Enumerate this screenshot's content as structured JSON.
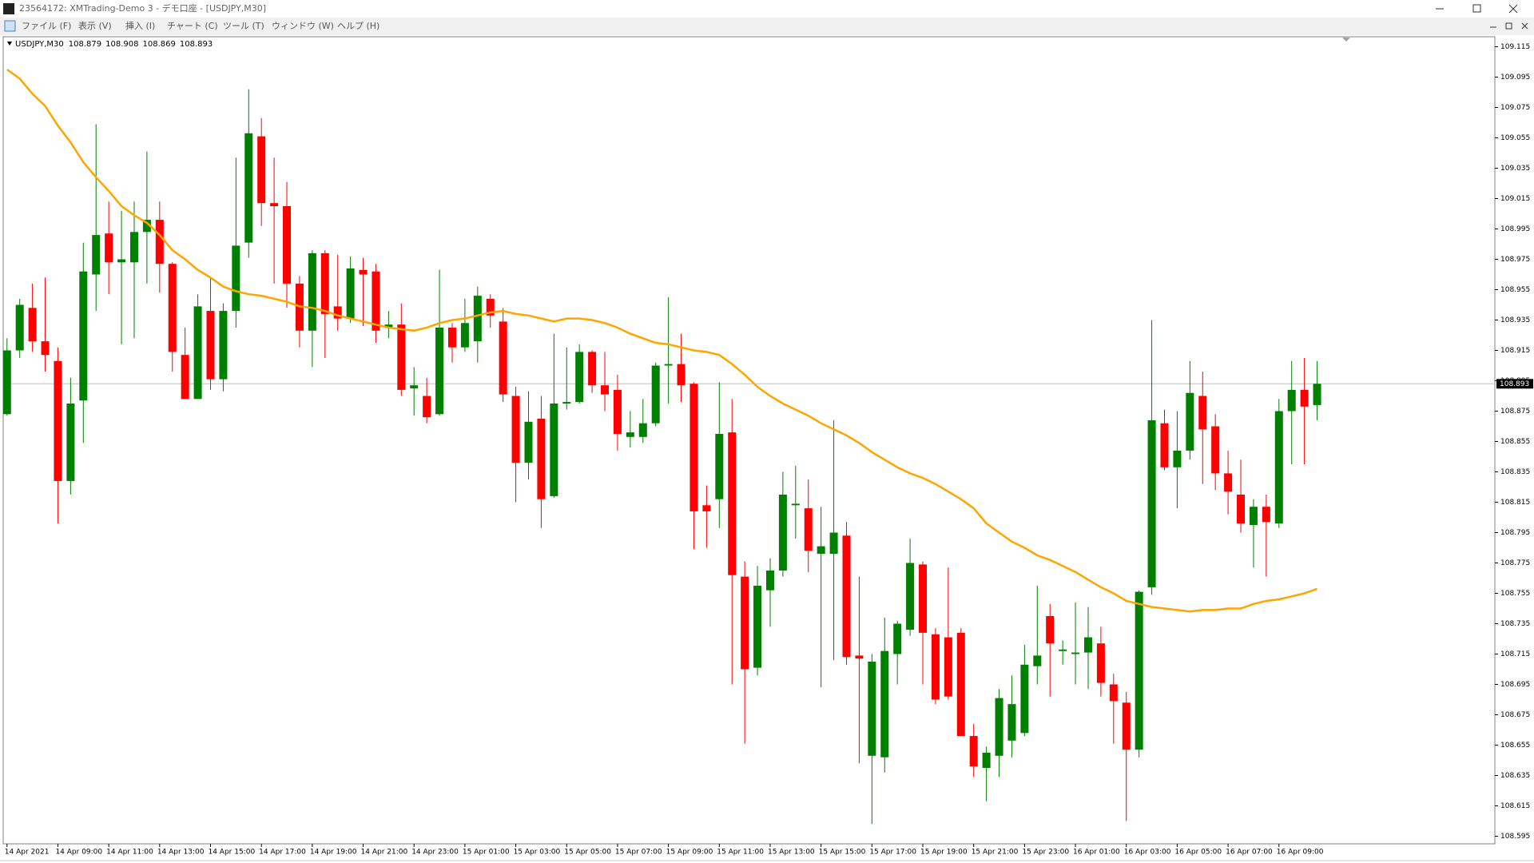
{
  "window": {
    "title": "23564172: XMTrading-Demo 3 - デモ口座 - [USDJPY,M30]",
    "menu": [
      "ファイル (F)",
      "表示 (V)",
      "挿入 (I)",
      "チャート (C)",
      "ツール (T)",
      "ウィンドウ (W)",
      "ヘルプ (H)"
    ]
  },
  "chart_data": {
    "type": "candlestick",
    "symbol": "USDJPY,M30",
    "categories": [
      "14 Apr 2021",
      null,
      null,
      null,
      "14 Apr 09:00",
      null,
      null,
      null,
      "14 Apr 11:00",
      null,
      null,
      null,
      "14 Apr 13:00",
      null,
      null,
      null,
      "14 Apr 15:00",
      null,
      null,
      null,
      "14 Apr 17:00",
      null,
      null,
      null,
      "14 Apr 19:00",
      null,
      null,
      null,
      "14 Apr 21:00",
      null,
      null,
      null,
      "14 Apr 23:00",
      null,
      null,
      null,
      "15 Apr 01:00",
      null,
      null,
      null,
      "15 Apr 03:00",
      null,
      null,
      null,
      "15 Apr 05:00",
      null,
      null,
      null,
      "15 Apr 07:00",
      null,
      null,
      null,
      "15 Apr 09:00",
      null,
      null,
      null,
      "15 Apr 11:00",
      null,
      null,
      null,
      "15 Apr 13:00",
      null,
      null,
      null,
      "15 Apr 15:00",
      null,
      null,
      null,
      "15 Apr 17:00",
      null,
      null,
      null,
      "15 Apr 19:00",
      null,
      null,
      null,
      "15 Apr 21:00",
      null,
      null,
      null,
      "15 Apr 23:00",
      null,
      null,
      null,
      "16 Apr 01:00",
      null,
      null,
      null,
      "16 Apr 03:00",
      null,
      null,
      null,
      "16 Apr 05:00",
      null,
      null,
      null,
      "16 Apr 07:00",
      null,
      null,
      null,
      "16 Apr 09:00",
      null,
      null,
      null
    ],
    "open": [
      108.873,
      108.915,
      108.943,
      108.921,
      108.908,
      108.829,
      108.882,
      108.965,
      108.992,
      108.973,
      108.973,
      108.993,
      109.001,
      108.972,
      108.912,
      108.883,
      108.941,
      108.896,
      108.941,
      108.986,
      109.056,
      109.012,
      109.01,
      108.959,
      108.928,
      108.979,
      108.944,
      108.936,
      108.968,
      108.967,
      108.93,
      108.932,
      108.89,
      108.885,
      108.873,
      108.93,
      108.917,
      108.921,
      108.949,
      108.934,
      108.885,
      108.841,
      108.87,
      108.819,
      108.88,
      108.881,
      108.914,
      108.892,
      108.889,
      108.858,
      108.858,
      108.867,
      108.905,
      108.906,
      108.893,
      108.813,
      108.817,
      108.861,
      108.766,
      108.706,
      108.757,
      108.77,
      108.813,
      108.811,
      108.781,
      108.781,
      108.793,
      108.714,
      108.648,
      108.647,
      108.715,
      108.731,
      108.774,
      108.728,
      108.726,
      108.729,
      108.661,
      108.64,
      108.648,
      108.658,
      108.663,
      108.707,
      108.74,
      108.717,
      108.715,
      108.716,
      108.722,
      108.695,
      108.683,
      108.652,
      108.759,
      108.867,
      108.838,
      108.849,
      108.885,
      108.865,
      108.834,
      108.82,
      108.8,
      108.812,
      108.801,
      108.875,
      108.889,
      108.879
    ],
    "high": [
      108.923,
      108.949,
      108.959,
      108.963,
      108.917,
      108.897,
      108.986,
      109.064,
      109.013,
      109.007,
      109.013,
      109.046,
      109.013,
      108.973,
      108.93,
      108.952,
      108.963,
      108.946,
      109.042,
      109.087,
      109.068,
      109.042,
      109.026,
      108.964,
      108.981,
      108.981,
      108.978,
      108.977,
      108.976,
      108.972,
      108.941,
      108.946,
      108.904,
      108.897,
      108.968,
      108.933,
      108.949,
      108.957,
      108.952,
      108.943,
      108.891,
      108.888,
      108.885,
      108.926,
      108.917,
      108.919,
      108.915,
      108.914,
      108.899,
      108.875,
      108.883,
      108.907,
      108.95,
      108.926,
      108.894,
      108.826,
      108.894,
      108.883,
      108.776,
      108.773,
      108.778,
      108.835,
      108.839,
      108.83,
      108.812,
      108.869,
      108.802,
      108.766,
      108.715,
      108.739,
      108.737,
      108.791,
      108.776,
      108.732,
      108.772,
      108.732,
      108.669,
      108.654,
      108.692,
      108.701,
      108.721,
      108.76,
      108.748,
      108.724,
      108.749,
      108.746,
      108.733,
      108.702,
      108.69,
      108.757,
      108.935,
      108.876,
      108.875,
      108.908,
      108.901,
      108.873,
      108.849,
      108.843,
      108.817,
      108.82,
      108.883,
      108.908,
      108.91,
      108.908
    ],
    "low": [
      108.872,
      108.91,
      108.914,
      108.901,
      108.801,
      108.82,
      108.854,
      108.941,
      108.952,
      108.919,
      108.923,
      108.959,
      108.953,
      108.901,
      108.883,
      108.883,
      108.889,
      108.888,
      108.93,
      108.976,
      108.997,
      108.959,
      108.943,
      108.917,
      108.904,
      108.91,
      108.928,
      108.933,
      108.931,
      108.92,
      108.923,
      108.885,
      108.872,
      108.867,
      108.872,
      108.907,
      108.914,
      108.907,
      108.93,
      108.881,
      108.815,
      108.83,
      108.798,
      108.818,
      108.876,
      108.88,
      108.887,
      108.875,
      108.849,
      108.851,
      108.854,
      108.865,
      108.88,
      108.881,
      108.784,
      108.785,
      108.798,
      108.695,
      108.656,
      108.701,
      108.733,
      108.766,
      108.791,
      108.769,
      108.693,
      108.711,
      108.708,
      108.643,
      108.603,
      108.637,
      108.695,
      108.727,
      108.695,
      108.682,
      108.685,
      108.661,
      108.634,
      108.618,
      108.634,
      108.647,
      108.661,
      108.695,
      108.687,
      108.708,
      108.695,
      108.692,
      108.687,
      108.656,
      108.605,
      108.647,
      108.754,
      108.836,
      108.811,
      108.843,
      108.827,
      108.823,
      108.807,
      108.795,
      108.772,
      108.766,
      108.798,
      108.84,
      108.84,
      108.869
    ],
    "close": [
      108.915,
      108.945,
      108.921,
      108.912,
      108.829,
      108.88,
      108.967,
      108.991,
      108.973,
      108.975,
      108.993,
      109.001,
      108.972,
      108.914,
      108.883,
      108.944,
      108.896,
      108.941,
      108.984,
      109.058,
      109.012,
      109.01,
      108.959,
      108.928,
      108.979,
      108.939,
      108.936,
      108.969,
      108.965,
      108.928,
      108.932,
      108.889,
      108.892,
      108.871,
      108.93,
      108.917,
      108.933,
      108.951,
      108.938,
      108.886,
      108.841,
      108.868,
      108.817,
      108.88,
      108.881,
      108.914,
      108.892,
      108.886,
      108.86,
      108.861,
      108.867,
      108.905,
      108.906,
      108.892,
      108.809,
      108.809,
      108.86,
      108.767,
      108.705,
      108.76,
      108.77,
      108.82,
      108.814,
      108.783,
      108.786,
      108.795,
      108.713,
      108.712,
      108.71,
      108.717,
      108.735,
      108.775,
      108.729,
      108.685,
      108.687,
      108.661,
      108.641,
      108.65,
      108.686,
      108.682,
      108.708,
      108.714,
      108.722,
      108.718,
      108.716,
      108.726,
      108.696,
      108.684,
      108.652,
      108.756,
      108.869,
      108.838,
      108.849,
      108.887,
      108.863,
      108.834,
      108.822,
      108.801,
      108.812,
      108.802,
      108.875,
      108.889,
      108.878,
      108.893
    ],
    "up_color": "#008000",
    "down_color": "#ff0000",
    "ma": {
      "color": "#ffa500",
      "values": [
        109.1,
        109.094,
        109.084,
        109.076,
        109.063,
        109.052,
        109.039,
        109.029,
        109.02,
        109.01,
        109.004,
        108.999,
        108.991,
        108.981,
        108.975,
        108.968,
        108.963,
        108.957,
        108.954,
        108.952,
        108.951,
        108.949,
        108.947,
        108.944,
        108.943,
        108.941,
        108.938,
        108.936,
        108.934,
        108.932,
        108.93,
        108.929,
        108.928,
        108.93,
        108.933,
        108.935,
        108.936,
        108.938,
        108.94,
        108.941,
        108.939,
        108.938,
        108.936,
        108.934,
        108.936,
        108.936,
        108.935,
        108.933,
        108.93,
        108.926,
        108.923,
        108.92,
        108.919,
        108.917,
        108.915,
        108.914,
        108.912,
        108.906,
        108.899,
        108.891,
        108.885,
        108.88,
        108.876,
        108.872,
        108.867,
        108.863,
        108.859,
        108.854,
        108.848,
        108.843,
        108.838,
        108.834,
        108.831,
        108.827,
        108.822,
        108.817,
        108.811,
        108.801,
        108.795,
        108.789,
        108.785,
        108.78,
        108.777,
        108.773,
        108.769,
        108.764,
        108.759,
        108.755,
        108.75,
        108.748,
        108.746,
        108.745,
        108.744,
        108.743,
        108.744,
        108.744,
        108.745,
        108.745,
        108.748,
        108.75,
        108.751,
        108.753,
        108.755,
        108.758
      ]
    },
    "ylim": [
      108.59,
      109.12
    ],
    "yticks": [
      109.115,
      109.095,
      109.075,
      109.055,
      109.035,
      109.015,
      108.995,
      108.975,
      108.955,
      108.935,
      108.915,
      108.895,
      108.875,
      108.855,
      108.835,
      108.815,
      108.795,
      108.775,
      108.755,
      108.735,
      108.715,
      108.695,
      108.675,
      108.655,
      108.635,
      108.615,
      108.595
    ],
    "grid": false
  }
}
